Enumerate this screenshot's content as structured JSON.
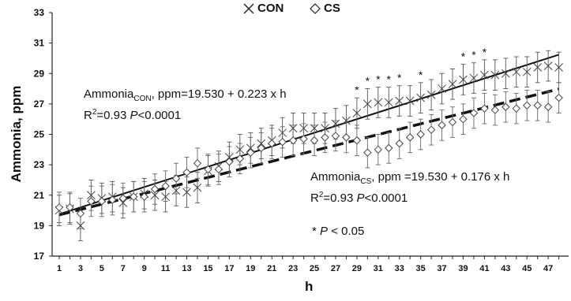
{
  "chart_data": {
    "type": "line",
    "title": "",
    "xlabel": "h",
    "ylabel": "Ammonia, ppm",
    "xlim": [
      1,
      48
    ],
    "ylim": [
      17,
      33
    ],
    "yticks": [
      17,
      19,
      21,
      23,
      25,
      27,
      29,
      31,
      33
    ],
    "xticks": [
      1,
      3,
      5,
      7,
      9,
      11,
      13,
      15,
      17,
      19,
      21,
      23,
      25,
      27,
      29,
      31,
      33,
      35,
      37,
      39,
      41,
      43,
      45,
      47
    ],
    "grid": false,
    "legend": {
      "placement": "top-center",
      "entries": [
        {
          "name": "CON",
          "marker": "x"
        },
        {
          "name": "CS",
          "marker": "diamond"
        }
      ]
    },
    "x": [
      1,
      2,
      3,
      4,
      5,
      6,
      7,
      8,
      9,
      10,
      11,
      12,
      13,
      14,
      15,
      16,
      17,
      18,
      19,
      20,
      21,
      22,
      23,
      24,
      25,
      26,
      27,
      28,
      29,
      30,
      31,
      32,
      33,
      34,
      35,
      36,
      37,
      38,
      39,
      40,
      41,
      42,
      43,
      44,
      45,
      46,
      47,
      48
    ],
    "series": [
      {
        "name": "CON",
        "marker": "x",
        "values": [
          20.0,
          20.1,
          19.0,
          21.0,
          20.8,
          20.9,
          20.5,
          20.9,
          21.1,
          21.0,
          20.9,
          21.3,
          21.2,
          21.5,
          22.6,
          22.9,
          23.5,
          24.0,
          24.1,
          24.4,
          24.6,
          25.1,
          25.4,
          25.4,
          25.4,
          25.4,
          25.7,
          25.9,
          26.4,
          27.0,
          27.1,
          27.1,
          27.2,
          27.2,
          27.4,
          27.6,
          28.0,
          28.3,
          28.6,
          28.7,
          28.9,
          28.9,
          29.0,
          29.1,
          29.1,
          29.4,
          29.5,
          29.4
        ],
        "error": 1.0,
        "fit": {
          "intercept": 19.53,
          "slope": 0.223,
          "style": "solid"
        }
      },
      {
        "name": "CS",
        "marker": "diamond",
        "values": [
          20.2,
          20.2,
          19.8,
          20.6,
          20.6,
          20.7,
          20.8,
          20.9,
          20.9,
          21.4,
          21.6,
          22.1,
          22.5,
          23.1,
          22.7,
          22.7,
          23.2,
          23.4,
          23.8,
          24.1,
          24.4,
          24.5,
          24.6,
          24.7,
          24.6,
          24.8,
          24.9,
          24.8,
          24.6,
          23.8,
          24.0,
          24.1,
          24.4,
          24.8,
          25.0,
          25.3,
          25.6,
          25.8,
          26.0,
          26.4,
          26.7,
          26.6,
          26.8,
          26.7,
          26.9,
          26.9,
          26.8,
          27.4
        ],
        "error": 1.0,
        "fit": {
          "intercept": 19.53,
          "slope": 0.176,
          "style": "dashed"
        }
      }
    ],
    "significant_hours": [
      29,
      30,
      31,
      32,
      33,
      35,
      39,
      40,
      41
    ],
    "significance_symbol": "*",
    "annotations": {
      "con_eq_prefix": "Ammonia",
      "con_eq_sub": "CON",
      "con_eq_rest": ", ppm=19.530 + 0.223 x h",
      "con_r2_prefix": "R",
      "con_r2_sup": "2",
      "con_r2_mid": "=0.93 ",
      "con_p": "P",
      "con_p_rest": "<0.0001",
      "cs_eq_prefix": "Ammonia",
      "cs_eq_sub": "CS",
      "cs_eq_rest": ", ppm =19.530 + 0.176 x h",
      "cs_r2_prefix": "R",
      "cs_r2_sup": "2",
      "cs_r2_mid": "=0.93 ",
      "cs_p": "P",
      "cs_p_rest": "<0.0001",
      "sig_star": "* ",
      "sig_p": "P",
      "sig_rest": " < 0.05"
    }
  }
}
